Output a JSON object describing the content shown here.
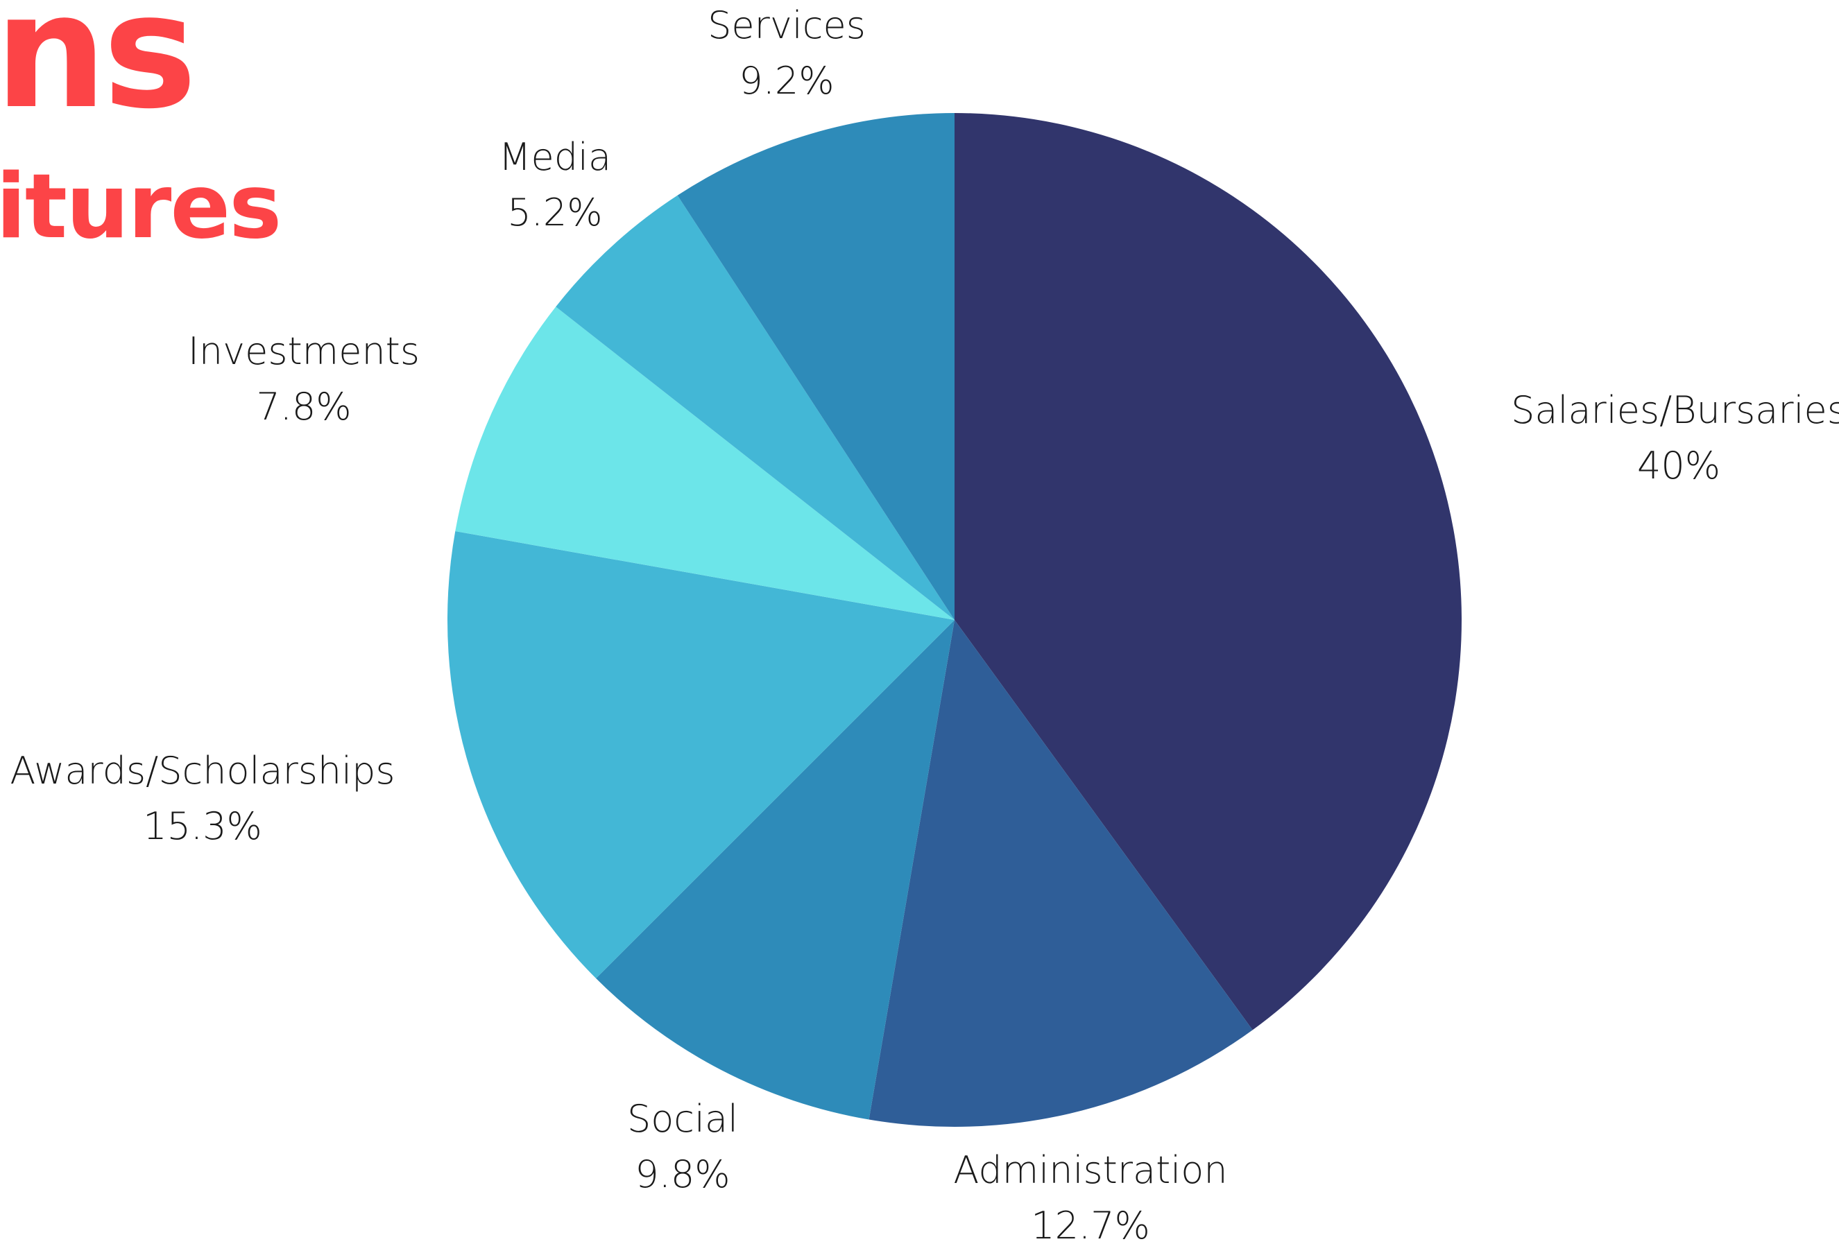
{
  "header": {
    "title_fragment": "ns",
    "subtitle_fragment": "itures"
  },
  "chart_data": {
    "type": "pie",
    "start_angle_deg": 0,
    "direction": "clockwise",
    "slices": [
      {
        "label": "Salaries/Bursaries",
        "value": 40,
        "display": "40%",
        "color": "#31356c"
      },
      {
        "label": "Administration",
        "value": 12.7,
        "display": "12.7%",
        "color": "#2f5e98"
      },
      {
        "label": "Social",
        "value": 9.8,
        "display": "9.8%",
        "color": "#2e8bb9"
      },
      {
        "label": "Awards/Scholarships",
        "value": 15.3,
        "display": "15.3%",
        "color": "#43b7d6"
      },
      {
        "label": "Investments",
        "value": 7.8,
        "display": "7.8%",
        "color": "#6ce5e9"
      },
      {
        "label": "Media",
        "value": 5.2,
        "display": "5.2%",
        "color": "#43b7d6"
      },
      {
        "label": "Services",
        "value": 9.2,
        "display": "9.2%",
        "color": "#2e8bb9"
      }
    ]
  }
}
